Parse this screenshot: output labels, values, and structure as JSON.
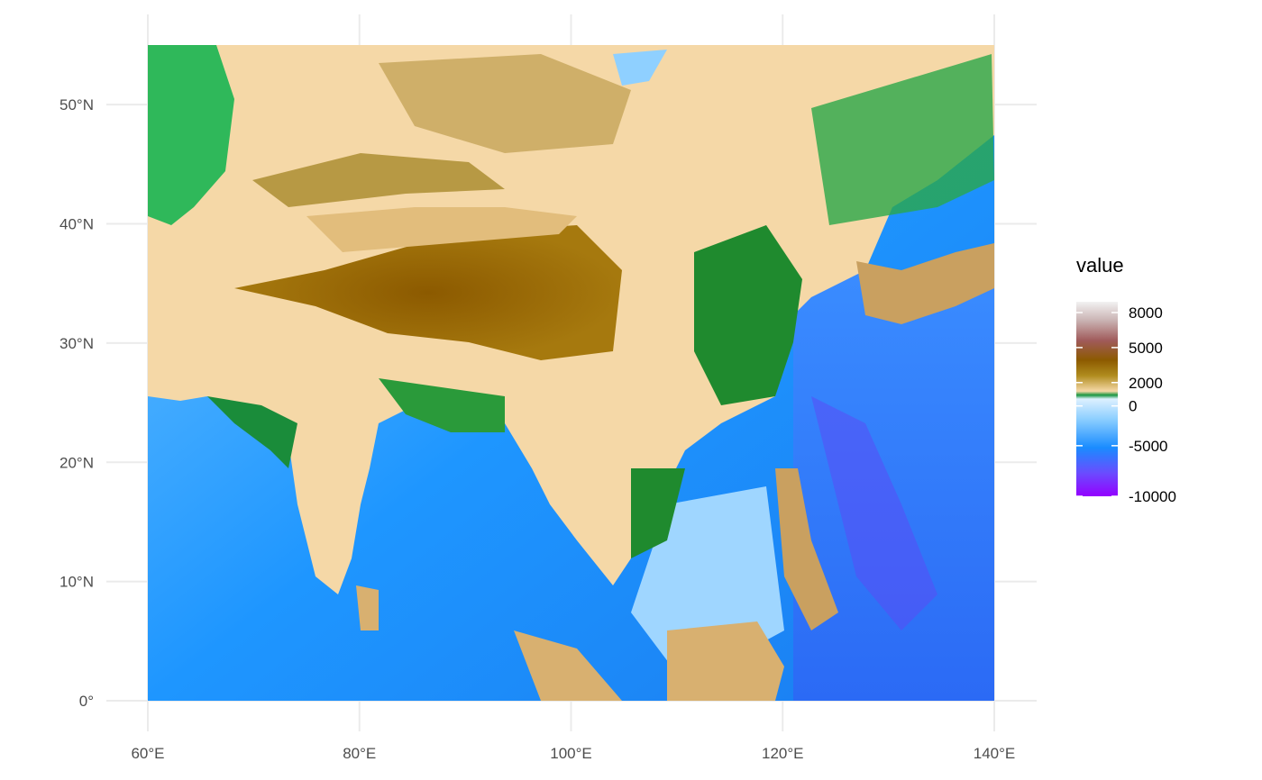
{
  "map": {
    "type": "raster",
    "x_axis": {
      "unit": "longitude",
      "range": [
        60,
        140
      ],
      "ticks": [
        {
          "value": 60,
          "label": "60°E"
        },
        {
          "value": 80,
          "label": "80°E"
        },
        {
          "value": 100,
          "label": "100°E"
        },
        {
          "value": 120,
          "label": "120°E"
        },
        {
          "value": 140,
          "label": "140°E"
        }
      ]
    },
    "y_axis": {
      "unit": "latitude",
      "range": [
        0,
        55
      ],
      "ticks": [
        {
          "value": 0,
          "label": "0°"
        },
        {
          "value": 10,
          "label": "10°N"
        },
        {
          "value": 20,
          "label": "20°N"
        },
        {
          "value": 30,
          "label": "30°N"
        },
        {
          "value": 40,
          "label": "40°N"
        },
        {
          "value": 50,
          "label": "50°N"
        }
      ]
    },
    "grid": true,
    "background_color": "#ffffff",
    "grid_color": "#ebebeb"
  },
  "legend": {
    "title": "value",
    "placement": "right",
    "ticks": [
      {
        "value": 8000,
        "label": "8000"
      },
      {
        "value": 5000,
        "label": "5000"
      },
      {
        "value": 2000,
        "label": "2000"
      },
      {
        "value": 0,
        "label": "0"
      },
      {
        "value": -5000,
        "label": "-5000"
      },
      {
        "value": -10000,
        "label": "-10000"
      }
    ],
    "colors": {
      "deep_ocean": "#9400ff",
      "mid_ocean": "#1a8cff",
      "shallow_ocean": "#cfe9ff",
      "coast": "#1a9641",
      "lowland": "#f5d8a7",
      "upland": "#c79a2e",
      "highland": "#8c5a00",
      "alpine": "#a05a5a",
      "summit": "#f2f2f2"
    }
  }
}
